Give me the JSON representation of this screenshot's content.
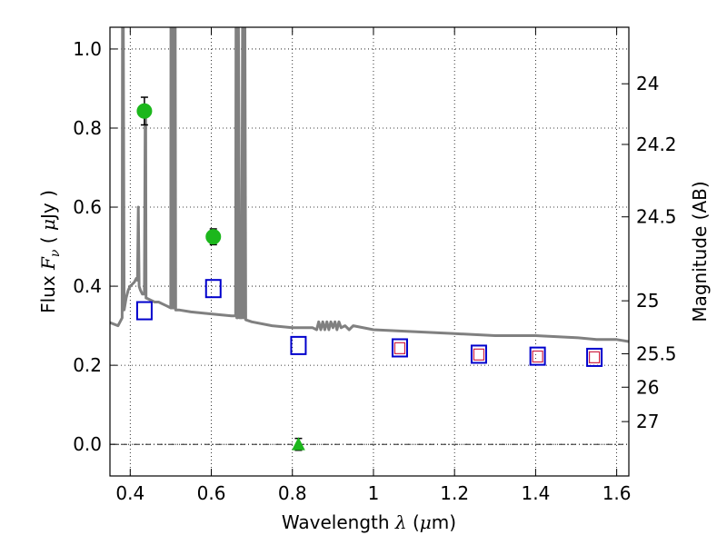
{
  "chart_data": {
    "type": "scatter",
    "title": "",
    "xlabel": {
      "text": "Wavelength",
      "symbol": "λ",
      "unit_open": " (",
      "unit_mu": "μ",
      "unit_rest": "m)"
    },
    "ylabel": {
      "text": "Flux",
      "symbol": "F",
      "subscript": "ν",
      "unit_open": "  ( ",
      "unit_mu": "μ",
      "unit_rest": "Jy )"
    },
    "y2label": "Magnitude (AB)",
    "xlim": [
      0.35,
      1.63
    ],
    "ylim": [
      -0.08,
      1.055
    ],
    "x_ticks": [
      {
        "value": 0.4,
        "label": "0.4"
      },
      {
        "value": 0.6,
        "label": "0.6"
      },
      {
        "value": 0.8,
        "label": "0.8"
      },
      {
        "value": 1.0,
        "label": "1"
      },
      {
        "value": 1.2,
        "label": "1.2"
      },
      {
        "value": 1.4,
        "label": "1.4"
      },
      {
        "value": 1.6,
        "label": "1.6"
      }
    ],
    "y_ticks": [
      {
        "value": 0.0,
        "label": "0.0"
      },
      {
        "value": 0.2,
        "label": "0.2"
      },
      {
        "value": 0.4,
        "label": "0.4"
      },
      {
        "value": 0.6,
        "label": "0.6"
      },
      {
        "value": 0.8,
        "label": "0.8"
      },
      {
        "value": 1.0,
        "label": "1.0"
      }
    ],
    "y2_ticks": [
      {
        "mag": 24.0,
        "label": "24"
      },
      {
        "mag": 24.2,
        "label": "24.2"
      },
      {
        "mag": 24.5,
        "label": "24.5"
      },
      {
        "mag": 25.0,
        "label": "25"
      },
      {
        "mag": 25.5,
        "label": "25.5"
      },
      {
        "mag": 26.0,
        "label": "26"
      },
      {
        "mag": 27.0,
        "label": "27"
      }
    ],
    "grid": true,
    "zero_line": true,
    "series": [
      {
        "marker": "line",
        "color": "#808080",
        "x": [
          0.35,
          0.37,
          0.38,
          0.381,
          0.383,
          0.385,
          0.39,
          0.395,
          0.4,
          0.405,
          0.41,
          0.415,
          0.418,
          0.42,
          0.422,
          0.425,
          0.43,
          0.435,
          0.437,
          0.438,
          0.439,
          0.44,
          0.45,
          0.46,
          0.47,
          0.48,
          0.49,
          0.5,
          0.5005,
          0.501,
          0.505,
          0.506,
          0.507,
          0.51,
          0.511,
          0.512,
          0.52,
          0.55,
          0.6,
          0.65,
          0.66,
          0.661,
          0.663,
          0.665,
          0.667,
          0.67,
          0.675,
          0.677,
          0.68,
          0.681,
          0.683,
          0.685,
          0.7,
          0.75,
          0.8,
          0.85,
          0.86,
          0.865,
          0.87,
          0.875,
          0.88,
          0.885,
          0.89,
          0.895,
          0.9,
          0.905,
          0.91,
          0.915,
          0.92,
          0.93,
          0.94,
          0.95,
          1.0,
          1.1,
          1.2,
          1.3,
          1.4,
          1.5,
          1.55,
          1.6,
          1.63
        ],
        "y": [
          0.308,
          0.3,
          0.32,
          1.06,
          1.06,
          0.34,
          0.37,
          0.39,
          0.4,
          0.405,
          0.41,
          0.42,
          0.415,
          0.6,
          0.4,
          0.39,
          0.38,
          0.38,
          0.84,
          0.84,
          0.37,
          0.37,
          0.365,
          0.36,
          0.36,
          0.355,
          0.35,
          0.345,
          1.06,
          0.345,
          0.345,
          1.06,
          0.345,
          0.345,
          1.06,
          0.34,
          0.34,
          0.335,
          0.33,
          0.325,
          0.325,
          1.06,
          0.32,
          0.32,
          1.06,
          0.32,
          0.32,
          1.06,
          0.32,
          0.32,
          1.06,
          0.315,
          0.31,
          0.3,
          0.295,
          0.295,
          0.29,
          0.31,
          0.29,
          0.31,
          0.29,
          0.31,
          0.29,
          0.31,
          0.295,
          0.31,
          0.29,
          0.31,
          0.295,
          0.3,
          0.29,
          0.3,
          0.29,
          0.285,
          0.28,
          0.275,
          0.275,
          0.27,
          0.265,
          0.265,
          0.26
        ]
      },
      {
        "marker": "circle",
        "color": "#1cb71c",
        "x": [
          0.435,
          0.605
        ],
        "y": [
          0.843,
          0.525
        ],
        "yerr": [
          0.035,
          0.02
        ]
      },
      {
        "marker": "triangle",
        "color": "#1cb71c",
        "x": [
          0.815
        ],
        "y": [
          0.0
        ],
        "yerr": [
          0.015
        ]
      },
      {
        "marker": "square-open",
        "color": "#0000cc",
        "x": [
          0.435,
          0.605,
          0.815,
          1.065,
          1.26,
          1.405,
          1.545
        ],
        "y": [
          0.338,
          0.394,
          0.25,
          0.244,
          0.228,
          0.223,
          0.22
        ]
      },
      {
        "marker": "square-open-small",
        "color": "#cc2244",
        "x": [
          1.065,
          1.26,
          1.405,
          1.545
        ],
        "y": [
          0.242,
          0.226,
          0.221,
          0.219
        ]
      }
    ]
  }
}
